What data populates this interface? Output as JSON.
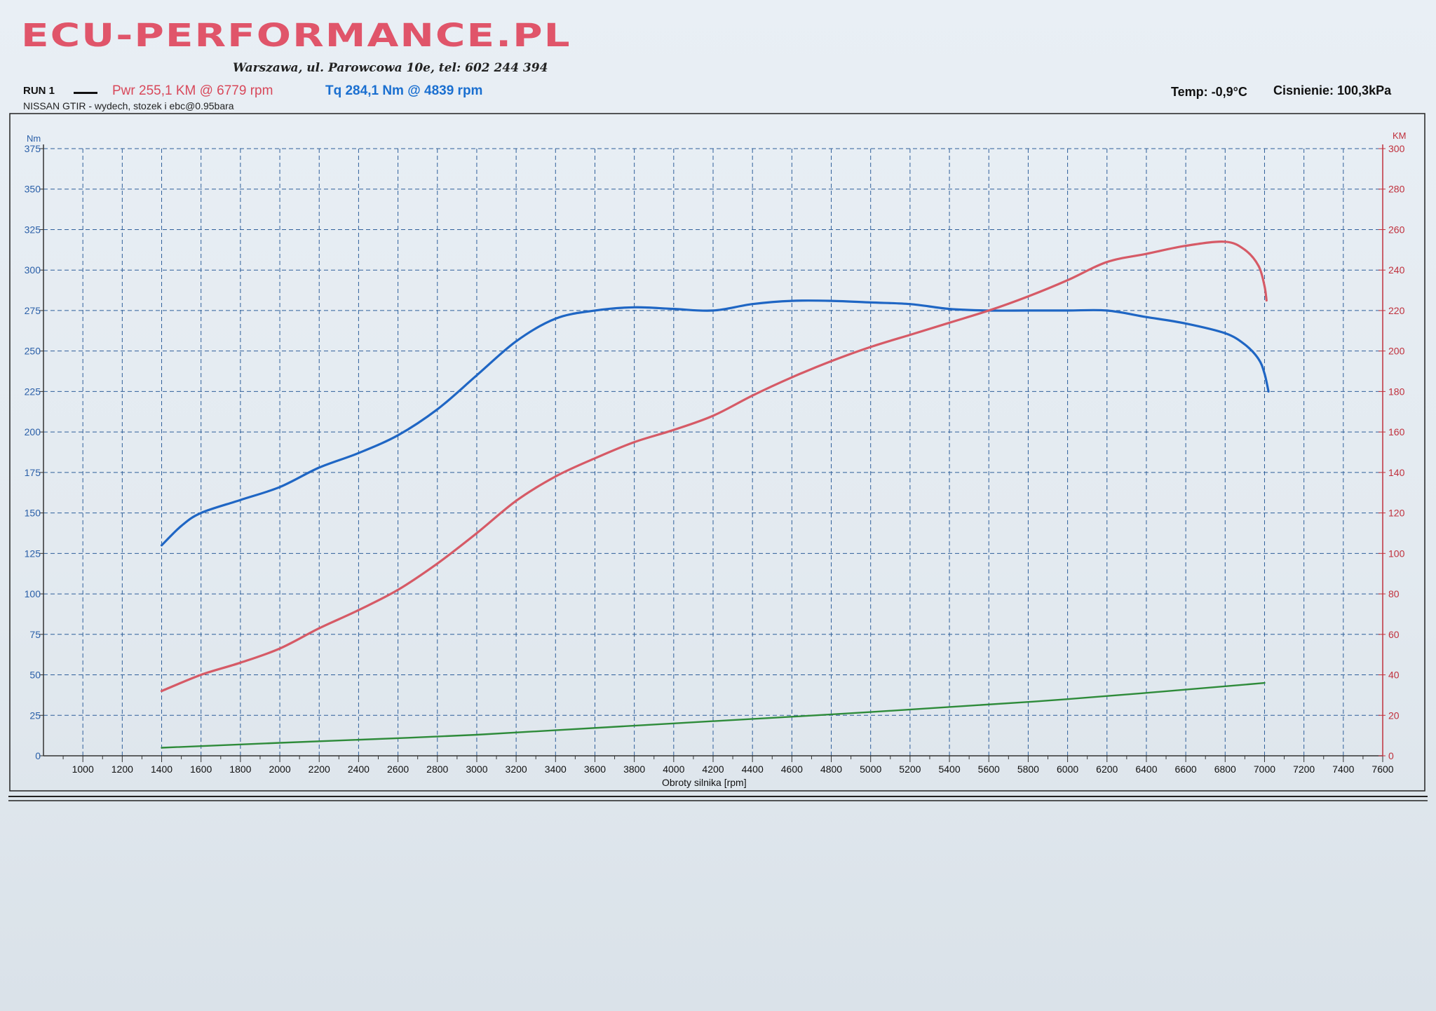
{
  "header": {
    "logo": "ECU-PERFORMANCE.PL",
    "address": "Warszawa, ul. Parowcowa 10e, tel: 602 244 394",
    "run": "RUN 1",
    "pwr": "Pwr  255,1 KM @ 6779 rpm",
    "tq": "Tq 284,1 Nm @ 4839 rpm",
    "temp": "Temp: -0,9°C",
    "pressure": "Cisnienie: 100,3kPa",
    "description": "NISSAN GTIR - wydech, stozek i ebc@0.95bara"
  },
  "colors": {
    "power": "#d65a66",
    "torque": "#1f66c4",
    "third": "#2e8b3a",
    "grid": "#2f5f9a",
    "right_axis": "#c0303c"
  },
  "chart_data": {
    "type": "line",
    "title": "",
    "xlabel": "Obroty silnika [rpm]",
    "ylabel_left": "Nm",
    "ylabel_right": "KM",
    "xlim": [
      800,
      7600
    ],
    "ylim_left": [
      0,
      375
    ],
    "ylim_right": [
      0,
      300
    ],
    "x_ticks": [
      1000,
      1200,
      1400,
      1600,
      1800,
      2000,
      2200,
      2400,
      2600,
      2800,
      3000,
      3200,
      3400,
      3600,
      3800,
      4000,
      4200,
      4400,
      4600,
      4800,
      5000,
      5200,
      5400,
      5600,
      5800,
      6000,
      6200,
      6400,
      6600,
      6800,
      7000,
      7200,
      7400,
      7600
    ],
    "y_left_ticks": [
      0,
      25,
      50,
      75,
      100,
      125,
      150,
      175,
      200,
      225,
      250,
      275,
      300,
      325,
      350,
      375
    ],
    "y_right_ticks": [
      0,
      20,
      40,
      60,
      80,
      100,
      120,
      140,
      160,
      180,
      200,
      220,
      240,
      260,
      280,
      300
    ],
    "grid": true,
    "series": [
      {
        "name": "Tq",
        "axis": "left",
        "points": [
          [
            1400,
            130
          ],
          [
            1500,
            142
          ],
          [
            1600,
            150
          ],
          [
            1800,
            158
          ],
          [
            2000,
            166
          ],
          [
            2200,
            178
          ],
          [
            2400,
            187
          ],
          [
            2600,
            198
          ],
          [
            2800,
            214
          ],
          [
            3000,
            235
          ],
          [
            3200,
            256
          ],
          [
            3400,
            270
          ],
          [
            3600,
            275
          ],
          [
            3800,
            277
          ],
          [
            4000,
            276
          ],
          [
            4200,
            275
          ],
          [
            4400,
            279
          ],
          [
            4600,
            281
          ],
          [
            4800,
            281
          ],
          [
            5000,
            280
          ],
          [
            5200,
            279
          ],
          [
            5400,
            276
          ],
          [
            5600,
            275
          ],
          [
            5800,
            275
          ],
          [
            6000,
            275
          ],
          [
            6200,
            275
          ],
          [
            6400,
            271
          ],
          [
            6600,
            267
          ],
          [
            6800,
            261
          ],
          [
            6900,
            254
          ],
          [
            6970,
            245
          ],
          [
            7000,
            236
          ],
          [
            7020,
            225
          ]
        ]
      },
      {
        "name": "Pwr",
        "axis": "right",
        "points": [
          [
            1400,
            32
          ],
          [
            1600,
            40
          ],
          [
            1800,
            46
          ],
          [
            2000,
            53
          ],
          [
            2200,
            63
          ],
          [
            2400,
            72
          ],
          [
            2600,
            82
          ],
          [
            2800,
            95
          ],
          [
            3000,
            110
          ],
          [
            3200,
            126
          ],
          [
            3400,
            138
          ],
          [
            3600,
            147
          ],
          [
            3800,
            155
          ],
          [
            4000,
            161
          ],
          [
            4200,
            168
          ],
          [
            4400,
            178
          ],
          [
            4600,
            187
          ],
          [
            4800,
            195
          ],
          [
            5000,
            202
          ],
          [
            5200,
            208
          ],
          [
            5400,
            214
          ],
          [
            5600,
            220
          ],
          [
            5800,
            227
          ],
          [
            6000,
            235
          ],
          [
            6200,
            244
          ],
          [
            6400,
            248
          ],
          [
            6600,
            252
          ],
          [
            6800,
            254
          ],
          [
            6900,
            250
          ],
          [
            6970,
            242
          ],
          [
            7000,
            232
          ],
          [
            7010,
            225
          ]
        ]
      },
      {
        "name": "",
        "axis": "left",
        "points": [
          [
            1400,
            5
          ],
          [
            2000,
            8
          ],
          [
            3000,
            13
          ],
          [
            4000,
            20
          ],
          [
            5000,
            27
          ],
          [
            6000,
            35
          ],
          [
            7000,
            45
          ]
        ]
      }
    ]
  }
}
